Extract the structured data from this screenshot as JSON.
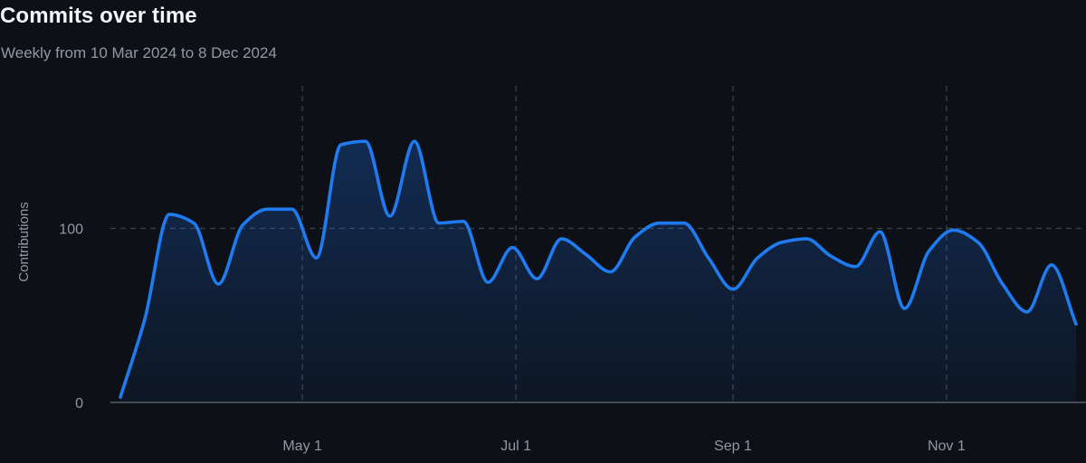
{
  "header": {
    "title": "Commits over time",
    "subtitle": "Weekly from 10 Mar 2024 to 8 Dec 2024"
  },
  "colors": {
    "background": "#0d1117",
    "line": "#1f7bf0",
    "grid": "#3d444d",
    "axis": "#656c76",
    "text": "#9198a1"
  },
  "chart_data": {
    "type": "area",
    "title": "Commits over time",
    "subtitle": "Weekly from 10 Mar 2024 to 8 Dec 2024",
    "xlabel": "",
    "ylabel": "Contributions",
    "ylim": [
      0,
      200
    ],
    "yticks": [
      {
        "value": 0,
        "label": "0"
      },
      {
        "value": 100,
        "label": "100"
      }
    ],
    "xlim": [
      "2024-03-10",
      "2024-12-08"
    ],
    "xticks": [
      {
        "value": "2024-05-01",
        "label": "May 1"
      },
      {
        "value": "2024-07-01",
        "label": "Jul 1"
      },
      {
        "value": "2024-09-01",
        "label": "Sep 1"
      },
      {
        "value": "2024-11-01",
        "label": "Nov 1"
      }
    ],
    "grid": true,
    "legend": "none",
    "series": [
      {
        "x": [
          "2024-03-10",
          "2024-03-17",
          "2024-03-24",
          "2024-03-31",
          "2024-04-07",
          "2024-04-14",
          "2024-04-21",
          "2024-04-28",
          "2024-05-05",
          "2024-05-12",
          "2024-05-19",
          "2024-05-26",
          "2024-06-02",
          "2024-06-09",
          "2024-06-16",
          "2024-06-23",
          "2024-06-30",
          "2024-07-07",
          "2024-07-14",
          "2024-07-21",
          "2024-07-28",
          "2024-08-04",
          "2024-08-11",
          "2024-08-18",
          "2024-08-25",
          "2024-09-01",
          "2024-09-08",
          "2024-09-15",
          "2024-09-22",
          "2024-09-29",
          "2024-10-06",
          "2024-10-13",
          "2024-10-20",
          "2024-10-27",
          "2024-11-03",
          "2024-11-10",
          "2024-11-17",
          "2024-11-24",
          "2024-12-01",
          "2024-12-08"
        ],
        "values": [
          3,
          48,
          108,
          103,
          68,
          102,
          111,
          111,
          83,
          148,
          150,
          107,
          150,
          103,
          104,
          69,
          89,
          71,
          94,
          85,
          75,
          95,
          103,
          103,
          83,
          65,
          83,
          92,
          94,
          84,
          78,
          98,
          54,
          87,
          99,
          92,
          68,
          52,
          79,
          45
        ]
      }
    ]
  }
}
